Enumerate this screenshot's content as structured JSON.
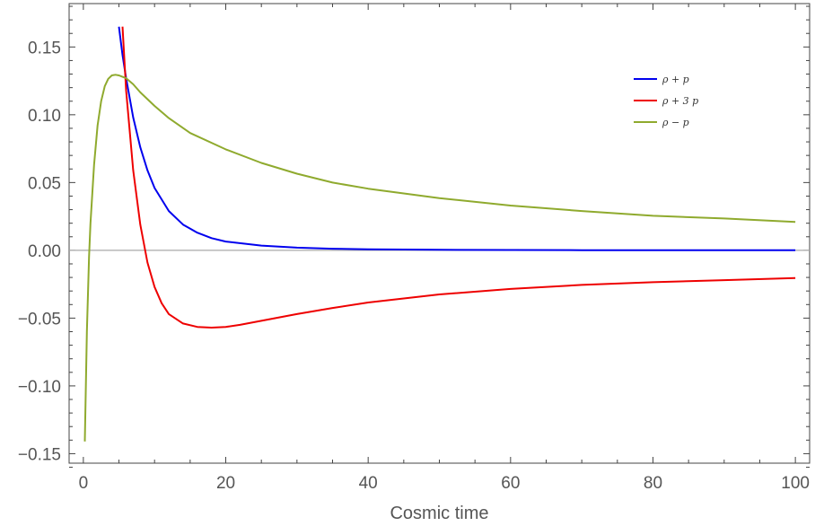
{
  "chart_data": {
    "type": "line",
    "title": "",
    "xlabel": "Cosmic time",
    "ylabel": "",
    "xlim": [
      -2,
      102
    ],
    "ylim": [
      -0.157,
      0.182
    ],
    "xticks": [
      0,
      20,
      40,
      60,
      80,
      100
    ],
    "xtick_labels": [
      "0",
      "20",
      "40",
      "60",
      "80",
      "100"
    ],
    "yticks": [
      -0.15,
      -0.1,
      -0.05,
      0.0,
      0.05,
      0.1,
      0.15
    ],
    "ytick_labels": [
      "−0.15",
      "−0.10",
      "−0.05",
      "0.00",
      "0.05",
      "0.10",
      "0.15"
    ],
    "grid": false,
    "zero_line": true,
    "legend": "top-right",
    "series": [
      {
        "name": "ρ + p",
        "color": "#0000ee",
        "x": [
          5.0,
          5.5,
          6.0,
          7.0,
          8.0,
          9.0,
          10.0,
          12.0,
          14.0,
          16.0,
          18.0,
          20.0,
          25.0,
          30.0,
          35.0,
          40.0,
          50.0,
          60.0,
          70.0,
          80.0,
          90.0,
          100.0
        ],
        "y": [
          0.165,
          0.144,
          0.127,
          0.098,
          0.076,
          0.059,
          0.046,
          0.029,
          0.019,
          0.013,
          0.009,
          0.0065,
          0.0035,
          0.002,
          0.0012,
          0.0008,
          0.0004,
          0.00025,
          0.00015,
          0.0001,
          7e-05,
          5e-05
        ]
      },
      {
        "name": "ρ + 3 p",
        "color": "#ee0000",
        "x": [
          5.5,
          6.0,
          7.0,
          8.0,
          9.0,
          10.0,
          11.0,
          12.0,
          14.0,
          16.0,
          18.0,
          20.0,
          22.0,
          25.0,
          30.0,
          35.0,
          40.0,
          50.0,
          60.0,
          70.0,
          80.0,
          90.0,
          100.0
        ],
        "y": [
          0.165,
          0.118,
          0.059,
          0.019,
          -0.009,
          -0.027,
          -0.039,
          -0.047,
          -0.054,
          -0.0565,
          -0.057,
          -0.0565,
          -0.055,
          -0.052,
          -0.047,
          -0.0425,
          -0.0385,
          -0.0325,
          -0.0285,
          -0.0255,
          -0.0235,
          -0.022,
          -0.0205
        ]
      },
      {
        "name": "ρ − p",
        "color": "#8faa2e",
        "x": [
          0.2,
          0.5,
          0.8,
          1.0,
          1.5,
          2.0,
          2.5,
          3.0,
          3.5,
          4.0,
          4.5,
          5.0,
          5.5,
          6.0,
          7.0,
          8.0,
          9.0,
          10.0,
          12.0,
          15.0,
          20.0,
          25.0,
          30.0,
          35.0,
          40.0,
          50.0,
          60.0,
          70.0,
          80.0,
          90.0,
          100.0
        ],
        "y": [
          -0.141,
          -0.06,
          -0.005,
          0.02,
          0.063,
          0.092,
          0.11,
          0.121,
          0.1265,
          0.129,
          0.1295,
          0.129,
          0.128,
          0.127,
          0.1225,
          0.1165,
          0.1115,
          0.1065,
          0.0975,
          0.0865,
          0.0745,
          0.0645,
          0.0565,
          0.05,
          0.0455,
          0.0385,
          0.033,
          0.029,
          0.0255,
          0.0235,
          0.021
        ]
      }
    ]
  }
}
